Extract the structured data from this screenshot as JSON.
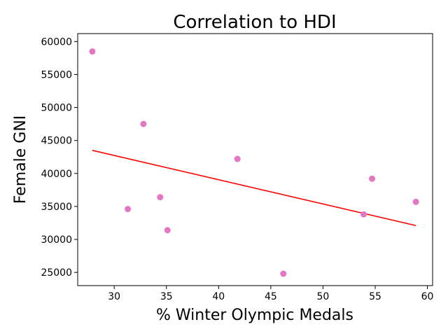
{
  "chart_data": {
    "type": "scatter",
    "title": "Correlation to HDI",
    "xlabel": "% Winter Olympic Medals",
    "ylabel": "Female GNI",
    "xlim": [
      26.5,
      60.5
    ],
    "ylim": [
      23000,
      61200
    ],
    "xticks": [
      30,
      35,
      40,
      45,
      50,
      55,
      60
    ],
    "yticks": [
      25000,
      30000,
      35000,
      40000,
      45000,
      50000,
      55000,
      60000
    ],
    "grid": false,
    "point_color": "#e377c2",
    "trend_color": "#ff0000",
    "points": [
      {
        "x": 27.9,
        "y": 58500
      },
      {
        "x": 31.3,
        "y": 34600
      },
      {
        "x": 32.8,
        "y": 47500
      },
      {
        "x": 34.4,
        "y": 36400
      },
      {
        "x": 35.1,
        "y": 31400
      },
      {
        "x": 41.8,
        "y": 42200
      },
      {
        "x": 46.2,
        "y": 24800
      },
      {
        "x": 53.9,
        "y": 33800
      },
      {
        "x": 54.7,
        "y": 39200
      },
      {
        "x": 58.9,
        "y": 35700
      }
    ],
    "trendline": [
      {
        "x": 27.9,
        "y": 43500
      },
      {
        "x": 58.9,
        "y": 32100
      }
    ]
  }
}
